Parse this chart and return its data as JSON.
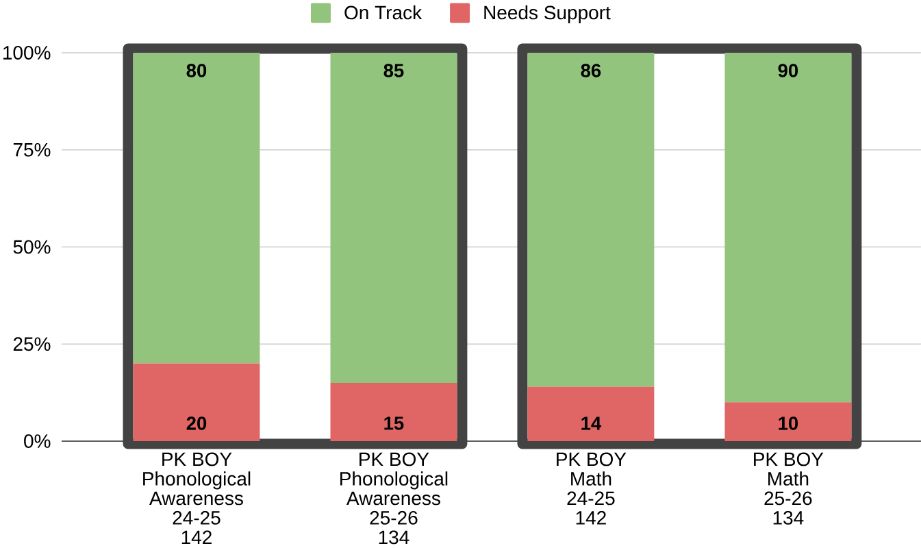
{
  "chart_data": {
    "type": "bar",
    "stacked": true,
    "categories": [
      "PK BOY\nPhonological\nAwareness\n24-25\n142",
      "PK BOY\nPhonological\nAwareness\n25-26\n134",
      "PK BOY\nMath\n24-25\n142",
      "PK BOY\nMath\n25-26\n134"
    ],
    "series": [
      {
        "name": "Needs Support",
        "color": "#e06666",
        "values": [
          20,
          15,
          14,
          10
        ]
      },
      {
        "name": "On Track",
        "color": "#93c47d",
        "values": [
          80,
          85,
          86,
          90
        ]
      }
    ],
    "ylim": [
      0,
      100
    ],
    "yticks": [
      {
        "value": 0,
        "label": "0%"
      },
      {
        "value": 25,
        "label": "25%"
      },
      {
        "value": 50,
        "label": "50%"
      },
      {
        "value": 75,
        "label": "75%"
      },
      {
        "value": 100,
        "label": "100%"
      }
    ],
    "grid": "y",
    "legend": "top",
    "data_labels": true
  }
}
